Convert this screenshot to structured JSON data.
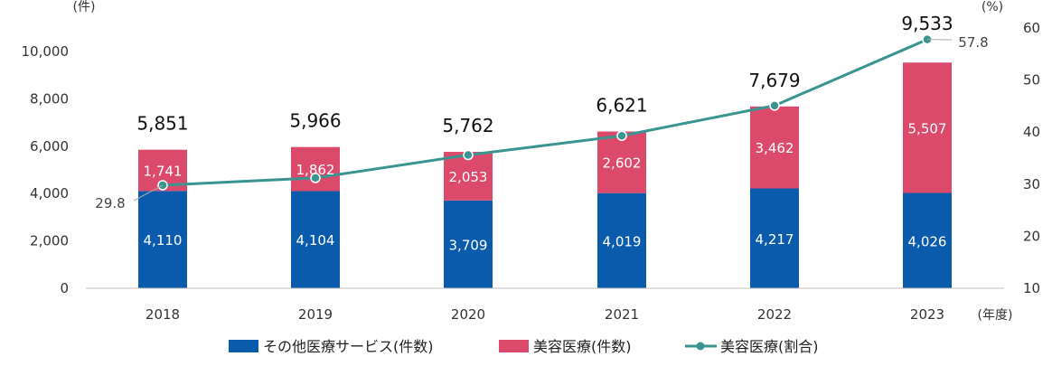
{
  "chart_data": {
    "type": "bar",
    "stacked": true,
    "categories": [
      "2018",
      "2019",
      "2020",
      "2021",
      "2022",
      "2023"
    ],
    "series": [
      {
        "name": "その他医療サービス(件数)",
        "type": "bar",
        "axis": "left",
        "color": "#0b5bad",
        "values": [
          4110,
          4104,
          3709,
          4019,
          4217,
          4026
        ],
        "labels": [
          "4,110",
          "4,104",
          "3,709",
          "4,019",
          "4,217",
          "4,026"
        ]
      },
      {
        "name": "美容医療(件数)",
        "type": "bar",
        "axis": "left",
        "color": "#dc4a6b",
        "values": [
          1741,
          1862,
          2053,
          2602,
          3462,
          5507
        ],
        "labels": [
          "1,741",
          "1,862",
          "2,053",
          "2,602",
          "3,462",
          "5,507"
        ]
      },
      {
        "name": "美容医療(割合)",
        "type": "line",
        "axis": "right",
        "color": "#3a9490",
        "values": [
          29.8,
          31.2,
          35.6,
          39.3,
          45.1,
          57.8
        ]
      }
    ],
    "totals": [
      5851,
      5966,
      5762,
      6621,
      7679,
      9533
    ],
    "total_labels": [
      "5,851",
      "5,966",
      "5,762",
      "6,621",
      "7,679",
      "9,533"
    ],
    "annotations": {
      "first_pct": "29.8",
      "last_pct": "57.8"
    },
    "y_left": {
      "unit": "(件)",
      "ylim": [
        0,
        10000
      ],
      "ticks": [
        "0",
        "2,000",
        "4,000",
        "6,000",
        "8,000",
        "10,000"
      ]
    },
    "y_right": {
      "unit": "(%)",
      "ylim": [
        10,
        60
      ],
      "ticks": [
        "10",
        "20",
        "30",
        "40",
        "50",
        "60"
      ]
    },
    "x_unit": "(年度)",
    "grid": false,
    "legend_position": "bottom"
  }
}
